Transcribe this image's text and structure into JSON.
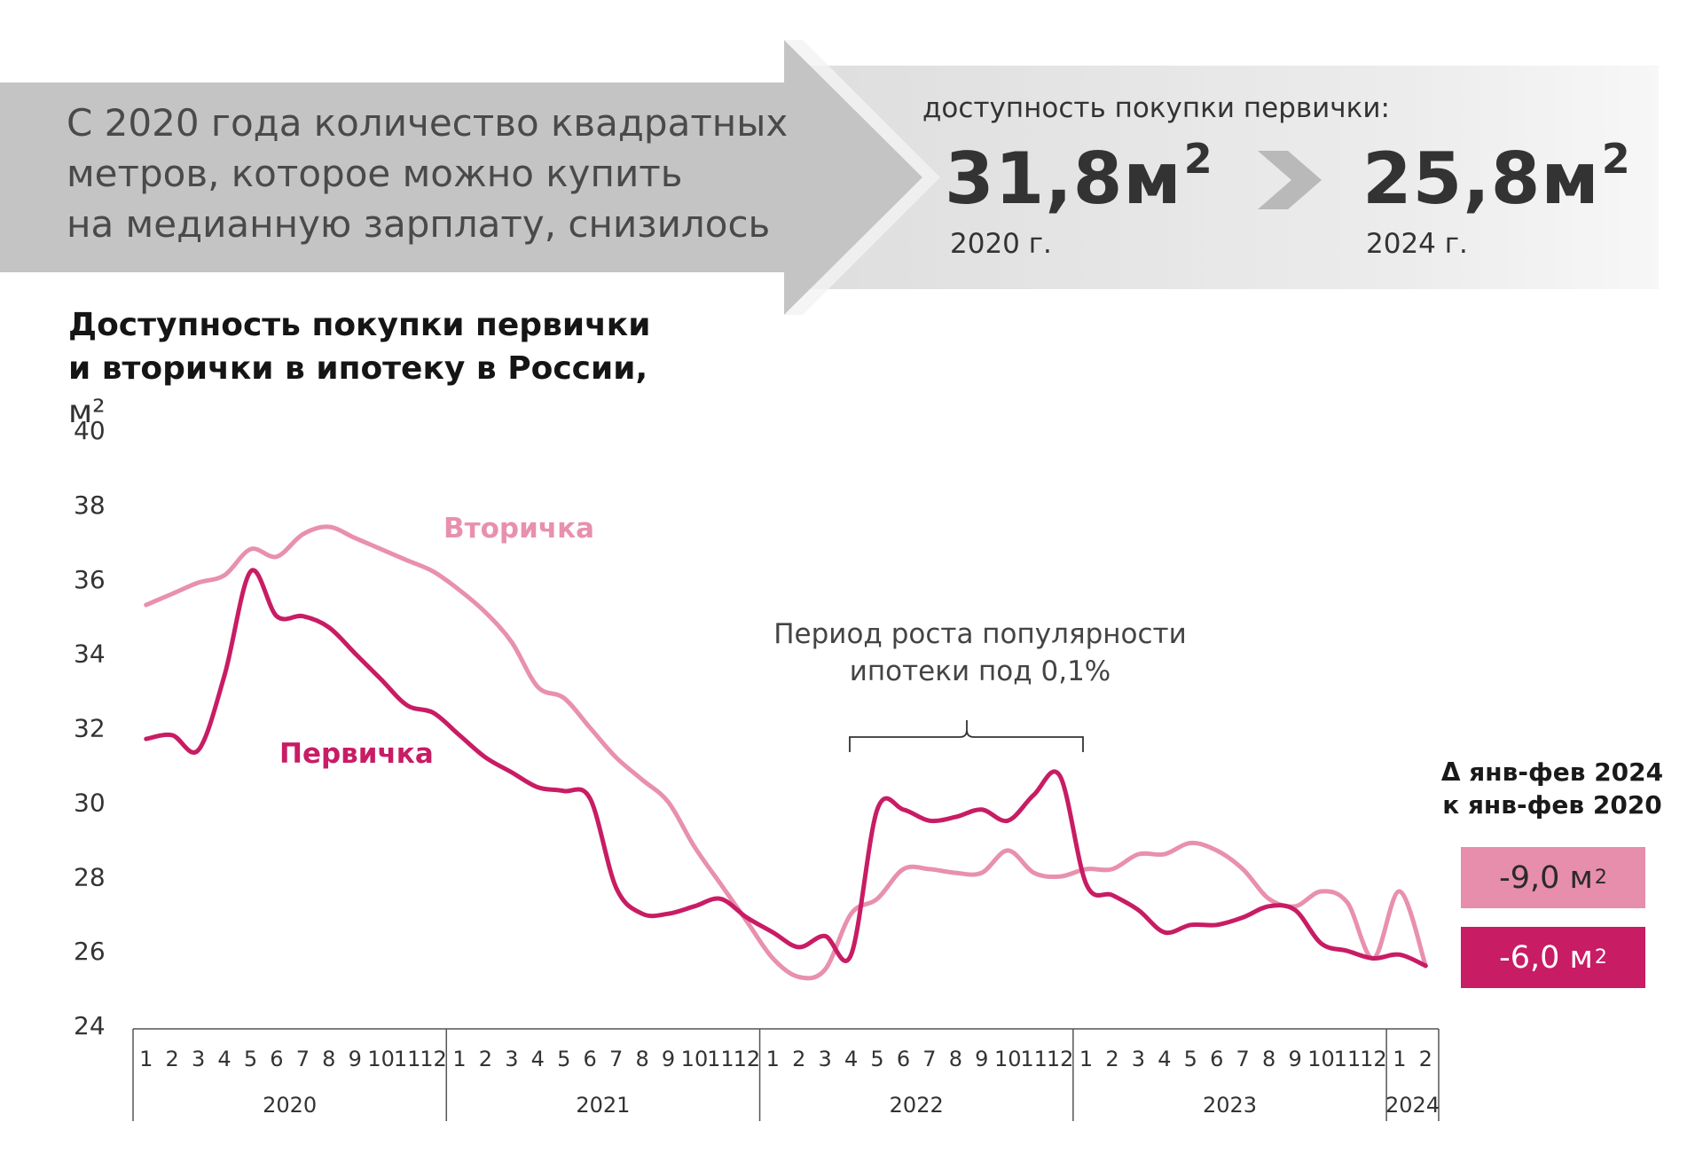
{
  "banner": {
    "headline_lines": [
      "С 2020 года количество квадратных",
      "метров, которое можно купить",
      "на медианную зарплату, снизилось"
    ],
    "kpi_label": "доступность покупки первички:",
    "from_value": "31,8м",
    "from_unit_power": "2",
    "from_year": "2020 г.",
    "to_value": "25,8м",
    "to_unit_power": "2",
    "to_year": "2024 г.",
    "colors": {
      "arrow": "#c4c4c4",
      "panel": "#e6e6e6",
      "chevron": "#b9b9b9"
    }
  },
  "chart_title": {
    "line1": "Доступность покупки первички",
    "line2": "и вторички в ипотеку в России,",
    "unit": " м²"
  },
  "annotation": {
    "line1": "Период роста популярности",
    "line2": "ипотеки под 0,1%"
  },
  "delta": {
    "title_line1": "Δ янв-фев 2024",
    "title_line2": "к янв-фев 2020",
    "secondary_value": "-9,0 м",
    "primary_value": "-6,0 м",
    "power": "2"
  },
  "chart_data": {
    "type": "line",
    "ylim": [
      24,
      40
    ],
    "yticks": [
      "24",
      "26",
      "28",
      "30",
      "32",
      "34",
      "36",
      "38",
      "40"
    ],
    "month_labels": [
      "1",
      "2",
      "3",
      "4",
      "5",
      "6",
      "7",
      "8",
      "9",
      "10",
      "11",
      "12",
      "1",
      "2",
      "3",
      "4",
      "5",
      "6",
      "7",
      "8",
      "9",
      "10",
      "11",
      "12",
      "1",
      "2",
      "3",
      "4",
      "5",
      "6",
      "7",
      "8",
      "9",
      "10",
      "11",
      "12",
      "1",
      "2",
      "3",
      "4",
      "5",
      "6",
      "7",
      "8",
      "9",
      "10",
      "11",
      "12",
      "1",
      "2"
    ],
    "year_groups": [
      {
        "label": "2020",
        "months": 12
      },
      {
        "label": "2021",
        "months": 12
      },
      {
        "label": "2022",
        "months": 12
      },
      {
        "label": "2023",
        "months": 12
      },
      {
        "label": "2024",
        "months": 2
      }
    ],
    "series": [
      {
        "name": "Вторичка",
        "color": "#e890ae",
        "values": [
          35.3,
          35.6,
          35.9,
          36.1,
          36.8,
          36.6,
          37.2,
          37.4,
          37.1,
          36.8,
          36.5,
          36.2,
          35.7,
          35.1,
          34.3,
          33.1,
          32.8,
          32.0,
          31.2,
          30.6,
          30.0,
          28.8,
          27.8,
          26.8,
          25.8,
          25.3,
          25.5,
          27.0,
          27.4,
          28.2,
          28.2,
          28.1,
          28.1,
          28.7,
          28.1,
          28.0,
          28.2,
          28.2,
          28.6,
          28.6,
          28.9,
          28.7,
          28.2,
          27.4,
          27.2,
          27.6,
          27.3,
          25.8,
          27.6,
          25.6
        ],
        "label_month_index": 11
      },
      {
        "name": "Первичка",
        "color": "#c81c64",
        "values": [
          31.7,
          31.8,
          31.4,
          33.4,
          36.2,
          35.0,
          35.0,
          34.7,
          34.0,
          33.3,
          32.6,
          32.4,
          31.8,
          31.2,
          30.8,
          30.4,
          30.3,
          30.1,
          27.7,
          27.0,
          27.0,
          27.2,
          27.4,
          26.9,
          26.5,
          26.1,
          26.4,
          25.9,
          29.8,
          29.8,
          29.5,
          29.6,
          29.8,
          29.5,
          30.2,
          30.7,
          27.8,
          27.5,
          27.1,
          26.5,
          26.7,
          26.7,
          26.9,
          27.2,
          27.1,
          26.2,
          26.0,
          25.8,
          25.9,
          25.6
        ],
        "label_month_index": 5
      }
    ]
  }
}
